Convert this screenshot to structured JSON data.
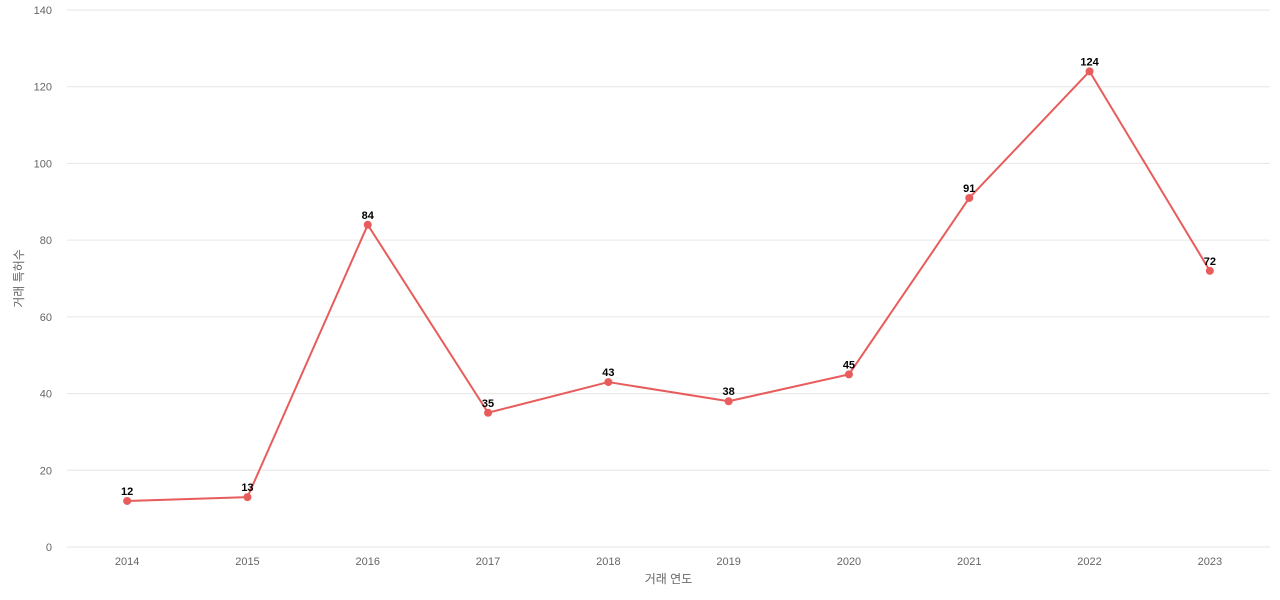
{
  "chart_data": {
    "type": "line",
    "title": "",
    "xlabel": "거래 연도",
    "ylabel": "거래 특허수",
    "categories": [
      "2014",
      "2015",
      "2016",
      "2017",
      "2018",
      "2019",
      "2020",
      "2021",
      "2022",
      "2023"
    ],
    "series": [
      {
        "values": [
          12,
          13,
          84,
          35,
          43,
          38,
          45,
          91,
          124,
          72
        ],
        "color": "#e85c5c"
      }
    ],
    "ylim": [
      0,
      140
    ],
    "yticks": [
      0,
      20,
      40,
      60,
      80,
      100,
      120,
      140
    ],
    "grid": true,
    "legend": "none",
    "data_labels": true
  }
}
